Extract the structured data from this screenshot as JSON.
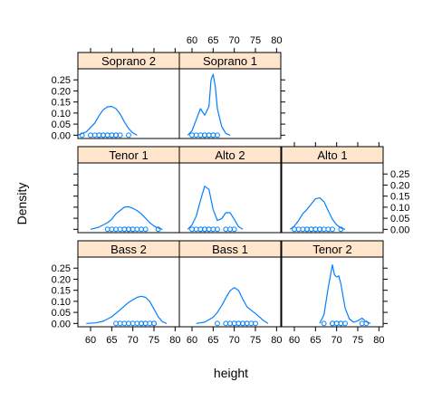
{
  "chart_data": {
    "type": "density",
    "xlabel": "height",
    "ylabel": "Density",
    "xlim": [
      57,
      81
    ],
    "ylim": [
      -0.015,
      0.3
    ],
    "x_ticks": [
      60,
      65,
      70,
      75,
      80
    ],
    "y_ticks": [
      0.0,
      0.05,
      0.1,
      0.15,
      0.2,
      0.25
    ],
    "y_tick_labels": [
      "0.00",
      "0.05",
      "0.10",
      "0.15",
      "0.20",
      "0.25"
    ],
    "layout": {
      "columns": 3,
      "rows": 3
    },
    "colors": {
      "line": "#0080ff",
      "strip": "#ffe5cc",
      "frame": "#000000"
    },
    "panels": [
      {
        "name": "Bass 2",
        "row": 0,
        "col": 0,
        "density": {
          "x": [
            59,
            61,
            63,
            65,
            67,
            69,
            71,
            72,
            73,
            74,
            75,
            76,
            77,
            78
          ],
          "y": [
            0.0,
            0.002,
            0.01,
            0.03,
            0.062,
            0.095,
            0.118,
            0.123,
            0.118,
            0.1,
            0.065,
            0.03,
            0.008,
            0.0
          ]
        },
        "points": [
          66,
          67,
          68,
          69,
          70,
          71,
          72,
          72,
          73,
          73,
          74,
          75,
          75
        ]
      },
      {
        "name": "Bass 1",
        "row": 0,
        "col": 1,
        "density": {
          "x": [
            61,
            63,
            65,
            66,
            67,
            68,
            69,
            70,
            71,
            72,
            73,
            74,
            75,
            77,
            78
          ],
          "y": [
            0.0,
            0.006,
            0.028,
            0.05,
            0.08,
            0.115,
            0.148,
            0.162,
            0.15,
            0.11,
            0.075,
            0.06,
            0.045,
            0.012,
            0.0
          ]
        },
        "points": [
          66,
          68,
          69,
          70,
          70,
          71,
          71,
          72,
          72,
          73,
          73,
          74,
          75
        ]
      },
      {
        "name": "Tenor 2",
        "row": 0,
        "col": 2,
        "density": {
          "x": [
            66,
            67,
            68,
            69,
            69.5,
            70,
            70.5,
            71,
            72,
            73,
            74,
            75,
            76,
            77,
            78
          ],
          "y": [
            0.0,
            0.04,
            0.16,
            0.265,
            0.22,
            0.21,
            0.215,
            0.18,
            0.07,
            0.02,
            0.006,
            0.012,
            0.024,
            0.008,
            0.0
          ]
        },
        "points": [
          67,
          69,
          69,
          70,
          70,
          71,
          71,
          72,
          76,
          77
        ]
      },
      {
        "name": "Tenor 1",
        "row": 1,
        "col": 0,
        "density": {
          "x": [
            60,
            62,
            64,
            65,
            66,
            68,
            69,
            70,
            71,
            72,
            73,
            74,
            75,
            76,
            77
          ],
          "y": [
            0.0,
            0.01,
            0.03,
            0.045,
            0.07,
            0.1,
            0.102,
            0.095,
            0.085,
            0.07,
            0.05,
            0.03,
            0.015,
            0.006,
            0.0
          ]
        },
        "points": [
          64,
          65,
          66,
          67,
          68,
          68,
          69,
          69,
          70,
          70,
          71,
          72,
          73,
          76
        ]
      },
      {
        "name": "Alto 2",
        "row": 1,
        "col": 1,
        "density": {
          "x": [
            59,
            60,
            61,
            62,
            63,
            64,
            65,
            66,
            67,
            68,
            69,
            70,
            71,
            72
          ],
          "y": [
            0.0,
            0.02,
            0.06,
            0.13,
            0.195,
            0.18,
            0.09,
            0.04,
            0.048,
            0.075,
            0.075,
            0.045,
            0.012,
            0.0
          ]
        },
        "points": [
          60,
          61,
          62,
          62,
          63,
          63,
          64,
          64,
          65,
          66,
          68,
          69,
          70
        ]
      },
      {
        "name": "Alto 1",
        "row": 1,
        "col": 2,
        "density": {
          "x": [
            59,
            60,
            61,
            62,
            63,
            64,
            65,
            66,
            67,
            68,
            69,
            70,
            71,
            72
          ],
          "y": [
            0.0,
            0.015,
            0.04,
            0.07,
            0.09,
            0.115,
            0.138,
            0.142,
            0.125,
            0.085,
            0.045,
            0.02,
            0.006,
            0.0
          ]
        },
        "points": [
          60,
          61,
          62,
          63,
          63,
          64,
          64,
          65,
          65,
          66,
          66,
          67,
          68,
          69,
          71
        ]
      },
      {
        "name": "Soprano 2",
        "row": 2,
        "col": 0,
        "density": {
          "x": [
            57,
            59,
            61,
            62,
            63,
            64,
            65,
            66,
            67,
            68,
            69,
            70,
            71
          ],
          "y": [
            0.0,
            0.015,
            0.055,
            0.088,
            0.115,
            0.128,
            0.13,
            0.12,
            0.096,
            0.06,
            0.03,
            0.01,
            0.0
          ]
        },
        "points": [
          58,
          60,
          61,
          62,
          62,
          63,
          63,
          64,
          64,
          65,
          65,
          66,
          66,
          67,
          69
        ]
      },
      {
        "name": "Soprano 1",
        "row": 2,
        "col": 1,
        "density": {
          "x": [
            59,
            60,
            61,
            62,
            63,
            64,
            64.5,
            65,
            65.5,
            66,
            67,
            68,
            69
          ],
          "y": [
            0.0,
            0.02,
            0.07,
            0.12,
            0.09,
            0.13,
            0.25,
            0.275,
            0.22,
            0.12,
            0.04,
            0.008,
            0.0
          ]
        },
        "points": [
          60,
          61,
          62,
          63,
          63,
          64,
          64,
          65,
          65,
          66
        ]
      }
    ]
  }
}
